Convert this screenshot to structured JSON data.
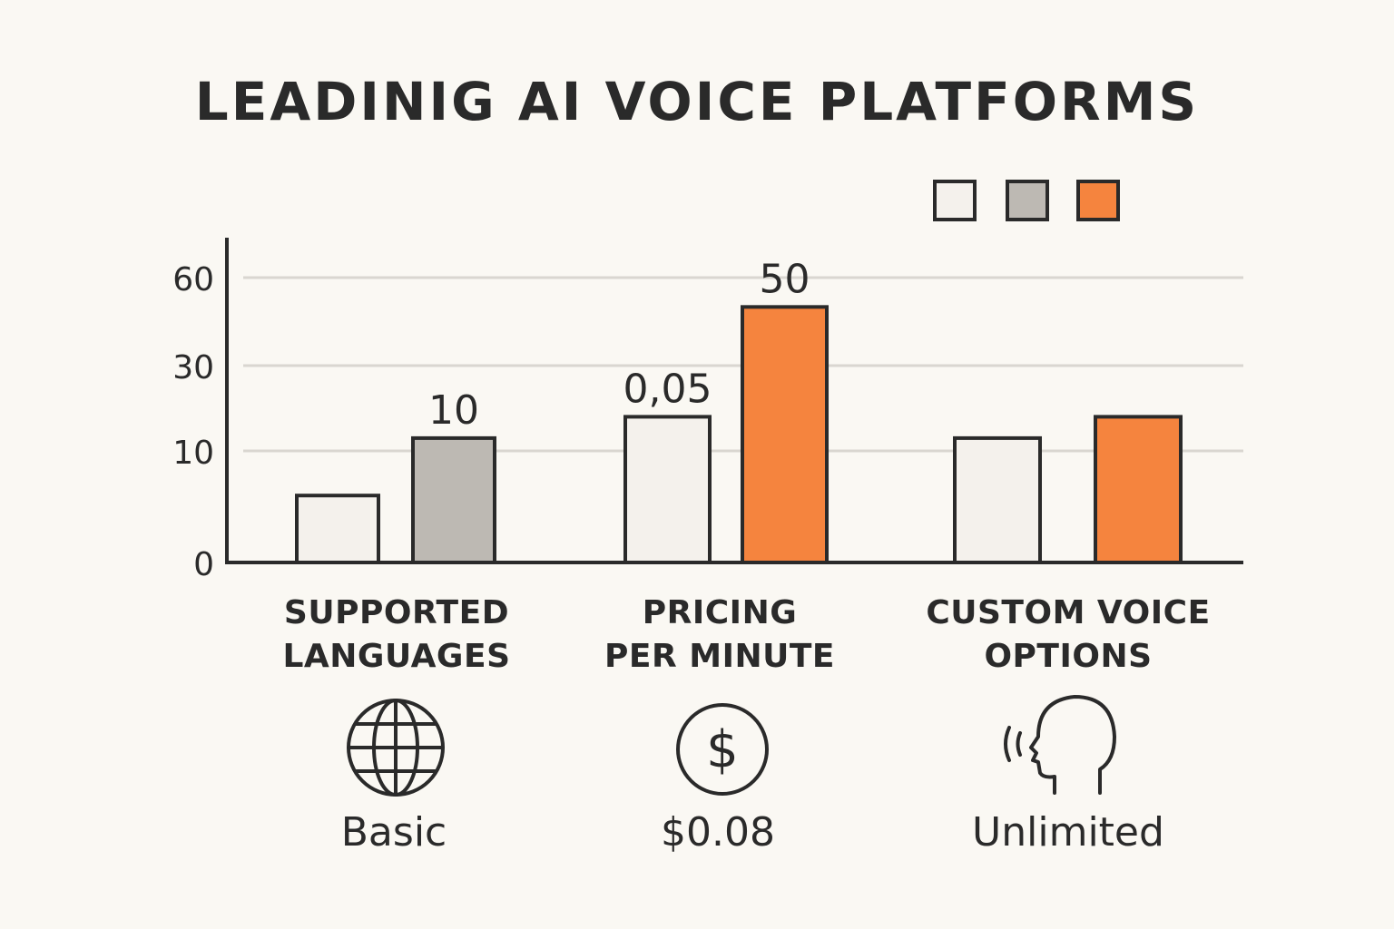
{
  "chart_data": {
    "type": "bar",
    "title": "LEADINIG AI VOICE PLATFORMS",
    "categories": [
      [
        "SUPPORTED",
        "LANGUAGES"
      ],
      [
        "PRICING",
        "PER MINUTE"
      ],
      [
        "CUSTOM VOICE",
        "OPTIONS"
      ]
    ],
    "series": [
      {
        "color": "#f4f1ec",
        "values": [
          6,
          18,
          13
        ]
      },
      {
        "color": "#bdb9b3",
        "values": [
          13,
          null,
          null
        ]
      },
      {
        "color": "#f5843e",
        "values": [
          null,
          50,
          18
        ]
      }
    ],
    "data_labels": [
      {
        "series": 1,
        "category": 0,
        "text": "10"
      },
      {
        "series": 0,
        "category": 1,
        "text": "0,05"
      },
      {
        "series": 2,
        "category": 1,
        "text": "50"
      }
    ],
    "yticks": [
      {
        "value": 0,
        "label": "0"
      },
      {
        "value": 10,
        "label": "10"
      },
      {
        "value": 30,
        "label": "30"
      },
      {
        "value": 60,
        "label": "60"
      }
    ],
    "ylim": [
      0,
      60
    ],
    "grid": true,
    "legend": "top-right"
  },
  "icons": [
    "globe-icon",
    "dollar-icon",
    "speaking-head-icon"
  ],
  "footer": [
    "Basic",
    "$0.08",
    "Unlimited"
  ],
  "colors": {
    "orange": "#f5843e",
    "gray": "#bdb9b3",
    "white": "#f4f1ec",
    "ink": "#2a2a2a"
  }
}
